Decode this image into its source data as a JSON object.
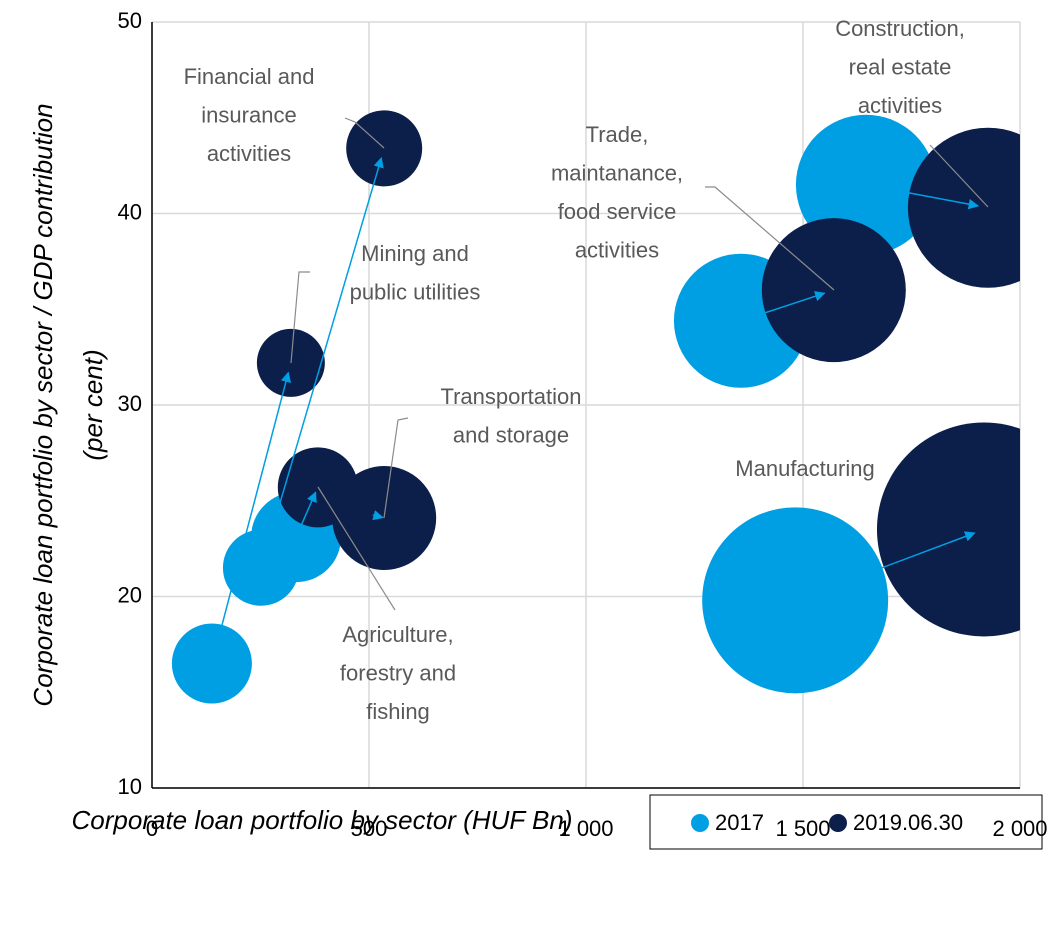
{
  "chart_data": {
    "type": "bubble",
    "x_label": "Corporate loan portfolio by sector (HUF Bn)",
    "y_label": [
      "Corporate loan portfolio by sector / GDP contribution",
      "(per cent)"
    ],
    "xlim": [
      0,
      2000
    ],
    "ylim": [
      10,
      50
    ],
    "xticks": [
      0,
      500,
      {
        "value": 1000,
        "label": "1 000"
      },
      {
        "value": 1500,
        "label": "1 500"
      },
      {
        "value": 2000,
        "label": "2 000"
      }
    ],
    "yticks": [
      10,
      20,
      30,
      40,
      50
    ],
    "grid": true,
    "point_labels": [
      [
        "Mining and",
        "public utilities"
      ],
      [
        "Financial and",
        "insurance",
        "activities"
      ],
      [
        "Agriculture,",
        "forestry and",
        "fishing"
      ],
      [
        "Transportation",
        "and storage"
      ],
      [
        "Trade,",
        "maintanance,",
        "food service",
        "activities"
      ],
      [
        "Construction,",
        "real estate",
        "activities"
      ],
      [
        "Manufacturing"
      ]
    ],
    "series": [
      {
        "name": "2017",
        "color": "#009fe3",
        "x": [
          138,
          251,
          332,
          502,
          1357,
          1645,
          1482
        ],
        "values": [
          16.5,
          21.5,
          23.1,
          24.3,
          34.4,
          41.5,
          19.8
        ],
        "sizes": [
          40,
          38,
          45,
          35,
          67,
          70,
          93
        ]
      },
      {
        "name": "2019.06.30",
        "color": "#0c1f4a",
        "x": [
          320,
          535,
          382,
          535,
          1571,
          1926,
          1917
        ],
        "values": [
          32.2,
          43.4,
          25.7,
          24.1,
          36.0,
          40.3,
          23.5
        ],
        "sizes": [
          34,
          38,
          40,
          52,
          72,
          80,
          107
        ]
      }
    ],
    "arrow_color": "#009fe3"
  }
}
